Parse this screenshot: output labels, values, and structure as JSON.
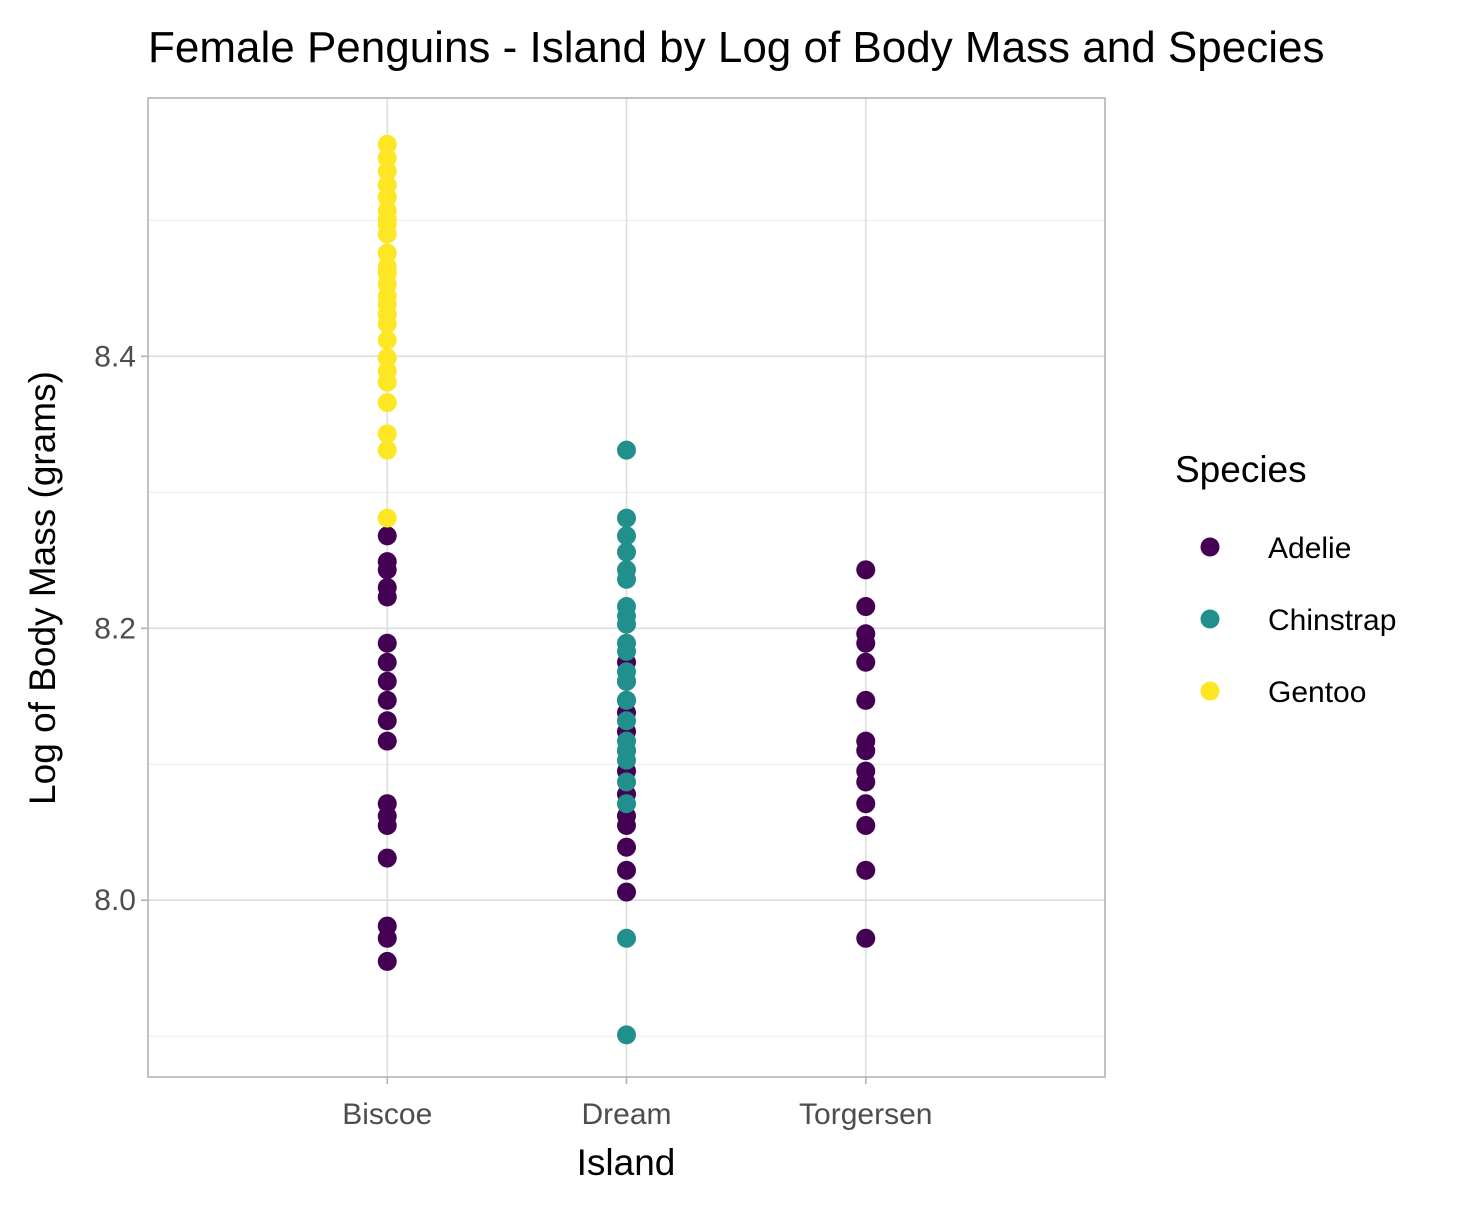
{
  "chart_data": {
    "type": "scatter",
    "title": "Female Penguins - Island by Log of Body Mass and Species",
    "xlabel": "Island",
    "ylabel": "Log of Body Mass (grams)",
    "categories": [
      "Biscoe",
      "Dream",
      "Torgersen"
    ],
    "ylim": [
      7.87,
      8.59
    ],
    "yticks": [
      8.0,
      8.2,
      8.4
    ],
    "ytick_labels": [
      "8.0",
      "8.2",
      "8.4"
    ],
    "grid": true,
    "legend": {
      "title": "Species",
      "position": "right",
      "entries": [
        "Adelie",
        "Chinstrap",
        "Gentoo"
      ]
    },
    "colors": {
      "Adelie": "#440154",
      "Chinstrap": "#21908c",
      "Gentoo": "#fde725"
    },
    "series": [
      {
        "name": "Adelie",
        "points": [
          {
            "x": "Biscoe",
            "y": 8.268
          },
          {
            "x": "Biscoe",
            "y": 8.249
          },
          {
            "x": "Biscoe",
            "y": 8.243
          },
          {
            "x": "Biscoe",
            "y": 8.23
          },
          {
            "x": "Biscoe",
            "y": 8.223
          },
          {
            "x": "Biscoe",
            "y": 8.189
          },
          {
            "x": "Biscoe",
            "y": 8.175
          },
          {
            "x": "Biscoe",
            "y": 8.161
          },
          {
            "x": "Biscoe",
            "y": 8.147
          },
          {
            "x": "Biscoe",
            "y": 8.132
          },
          {
            "x": "Biscoe",
            "y": 8.117
          },
          {
            "x": "Biscoe",
            "y": 8.071
          },
          {
            "x": "Biscoe",
            "y": 8.062
          },
          {
            "x": "Biscoe",
            "y": 8.055
          },
          {
            "x": "Biscoe",
            "y": 8.031
          },
          {
            "x": "Biscoe",
            "y": 7.981
          },
          {
            "x": "Biscoe",
            "y": 7.972
          },
          {
            "x": "Biscoe",
            "y": 7.955
          },
          {
            "x": "Dream",
            "y": 8.175
          },
          {
            "x": "Dream",
            "y": 8.161
          },
          {
            "x": "Dream",
            "y": 8.147
          },
          {
            "x": "Dream",
            "y": 8.138
          },
          {
            "x": "Dream",
            "y": 8.124
          },
          {
            "x": "Dream",
            "y": 8.11
          },
          {
            "x": "Dream",
            "y": 8.095
          },
          {
            "x": "Dream",
            "y": 8.078
          },
          {
            "x": "Dream",
            "y": 8.062
          },
          {
            "x": "Dream",
            "y": 8.055
          },
          {
            "x": "Dream",
            "y": 8.039
          },
          {
            "x": "Dream",
            "y": 8.022
          },
          {
            "x": "Dream",
            "y": 8.006
          },
          {
            "x": "Torgersen",
            "y": 8.243
          },
          {
            "x": "Torgersen",
            "y": 8.216
          },
          {
            "x": "Torgersen",
            "y": 8.196
          },
          {
            "x": "Torgersen",
            "y": 8.189
          },
          {
            "x": "Torgersen",
            "y": 8.175
          },
          {
            "x": "Torgersen",
            "y": 8.147
          },
          {
            "x": "Torgersen",
            "y": 8.117
          },
          {
            "x": "Torgersen",
            "y": 8.11
          },
          {
            "x": "Torgersen",
            "y": 8.095
          },
          {
            "x": "Torgersen",
            "y": 8.087
          },
          {
            "x": "Torgersen",
            "y": 8.071
          },
          {
            "x": "Torgersen",
            "y": 8.055
          },
          {
            "x": "Torgersen",
            "y": 8.022
          },
          {
            "x": "Torgersen",
            "y": 7.972
          }
        ]
      },
      {
        "name": "Chinstrap",
        "points": [
          {
            "x": "Dream",
            "y": 8.331
          },
          {
            "x": "Dream",
            "y": 8.281
          },
          {
            "x": "Dream",
            "y": 8.268
          },
          {
            "x": "Dream",
            "y": 8.256
          },
          {
            "x": "Dream",
            "y": 8.243
          },
          {
            "x": "Dream",
            "y": 8.236
          },
          {
            "x": "Dream",
            "y": 8.216
          },
          {
            "x": "Dream",
            "y": 8.209
          },
          {
            "x": "Dream",
            "y": 8.203
          },
          {
            "x": "Dream",
            "y": 8.189
          },
          {
            "x": "Dream",
            "y": 8.183
          },
          {
            "x": "Dream",
            "y": 8.168
          },
          {
            "x": "Dream",
            "y": 8.161
          },
          {
            "x": "Dream",
            "y": 8.147
          },
          {
            "x": "Dream",
            "y": 8.132
          },
          {
            "x": "Dream",
            "y": 8.117
          },
          {
            "x": "Dream",
            "y": 8.11
          },
          {
            "x": "Dream",
            "y": 8.103
          },
          {
            "x": "Dream",
            "y": 8.087
          },
          {
            "x": "Dream",
            "y": 8.071
          },
          {
            "x": "Dream",
            "y": 7.972
          },
          {
            "x": "Dream",
            "y": 7.901
          }
        ]
      },
      {
        "name": "Gentoo",
        "points": [
          {
            "x": "Biscoe",
            "y": 8.556
          },
          {
            "x": "Biscoe",
            "y": 8.546
          },
          {
            "x": "Biscoe",
            "y": 8.536
          },
          {
            "x": "Biscoe",
            "y": 8.526
          },
          {
            "x": "Biscoe",
            "y": 8.517
          },
          {
            "x": "Biscoe",
            "y": 8.507
          },
          {
            "x": "Biscoe",
            "y": 8.501
          },
          {
            "x": "Biscoe",
            "y": 8.497
          },
          {
            "x": "Biscoe",
            "y": 8.49
          },
          {
            "x": "Biscoe",
            "y": 8.476
          },
          {
            "x": "Biscoe",
            "y": 8.466
          },
          {
            "x": "Biscoe",
            "y": 8.461
          },
          {
            "x": "Biscoe",
            "y": 8.453
          },
          {
            "x": "Biscoe",
            "y": 8.444
          },
          {
            "x": "Biscoe",
            "y": 8.438
          },
          {
            "x": "Biscoe",
            "y": 8.431
          },
          {
            "x": "Biscoe",
            "y": 8.424
          },
          {
            "x": "Biscoe",
            "y": 8.412
          },
          {
            "x": "Biscoe",
            "y": 8.399
          },
          {
            "x": "Biscoe",
            "y": 8.389
          },
          {
            "x": "Biscoe",
            "y": 8.381
          },
          {
            "x": "Biscoe",
            "y": 8.366
          },
          {
            "x": "Biscoe",
            "y": 8.343
          },
          {
            "x": "Biscoe",
            "y": 8.331
          },
          {
            "x": "Biscoe",
            "y": 8.281
          }
        ]
      }
    ]
  }
}
